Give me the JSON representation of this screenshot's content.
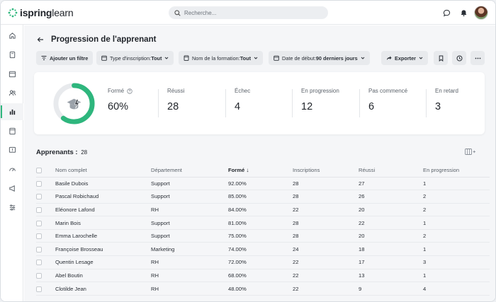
{
  "brand": {
    "bold": "ispring",
    "light": "learn",
    "accent": "#2eb67d"
  },
  "search": {
    "placeholder": "Recherche..."
  },
  "header": {
    "title": "Progression de l'apprenant"
  },
  "filters": {
    "add": "Ajouter un filtre",
    "items": [
      {
        "label": "Type d'inscription: ",
        "value": "Tout"
      },
      {
        "label": "Nom de la formation: ",
        "value": "Tout"
      },
      {
        "label": "Date de début: ",
        "value": "90 derniers jours"
      }
    ],
    "export": "Exporter"
  },
  "summary": {
    "progress": 0.6,
    "stats": [
      {
        "label": "Formé",
        "value": "60%"
      },
      {
        "label": "Réussi",
        "value": "28"
      },
      {
        "label": "Échec",
        "value": "4"
      },
      {
        "label": "En progression",
        "value": "12"
      },
      {
        "label": "Pas commencé",
        "value": "6"
      },
      {
        "label": "En retard",
        "value": "3"
      }
    ]
  },
  "learners": {
    "title": "Apprenants :",
    "count": "28",
    "columns": [
      "Nom complet",
      "Département",
      "Formé",
      "Inscriptions",
      "Réussi",
      "En progression"
    ],
    "sort_arrow": "↓",
    "rows": [
      [
        "Basile Dubois",
        "Support",
        "92.00%",
        "28",
        "27",
        "1"
      ],
      [
        "Pascal Robichaud",
        "Support",
        "85.00%",
        "28",
        "26",
        "2"
      ],
      [
        "Eléonore Lafond",
        "RH",
        "84.00%",
        "22",
        "20",
        "2"
      ],
      [
        "Marin Bois",
        "Support",
        "81.00%",
        "28",
        "22",
        "1"
      ],
      [
        "Emma Larochelle",
        "Support",
        "75.00%",
        "28",
        "20",
        "2"
      ],
      [
        "Françoise Brosseau",
        "Marketing",
        "74.00%",
        "24",
        "18",
        "1"
      ],
      [
        "Quentin Lesage",
        "RH",
        "72.00%",
        "22",
        "17",
        "3"
      ],
      [
        "Abel Boutin",
        "RH",
        "68.00%",
        "22",
        "13",
        "1"
      ],
      [
        "Clotilde Jean",
        "RH",
        "48.00%",
        "22",
        "9",
        "4"
      ]
    ]
  }
}
